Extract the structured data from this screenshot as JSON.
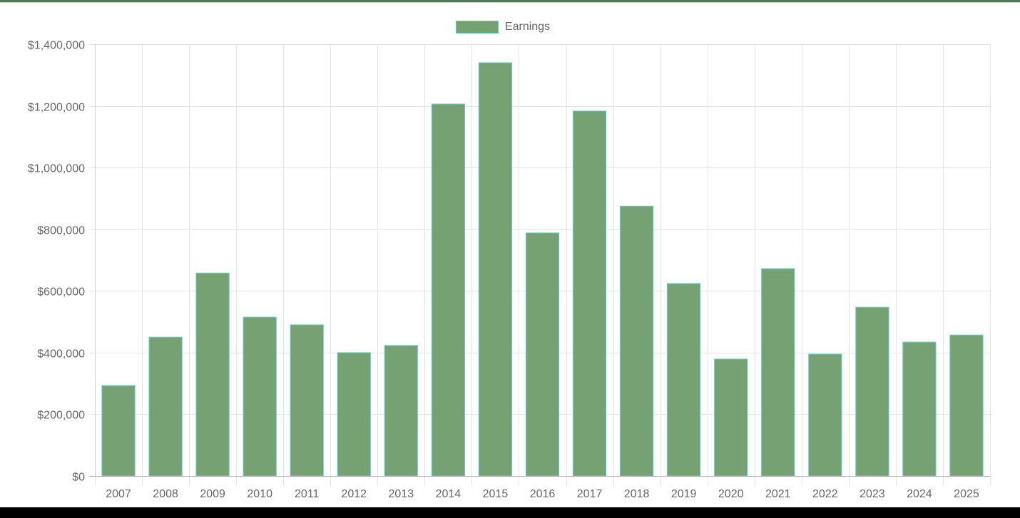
{
  "chart_data": {
    "type": "bar",
    "title": "",
    "xlabel": "",
    "ylabel": "",
    "ylim": [
      0,
      1400000
    ],
    "yticks": [
      0,
      200000,
      400000,
      600000,
      800000,
      1000000,
      1200000,
      1400000
    ],
    "ytick_labels": [
      "$0",
      "$200,000",
      "$400,000",
      "$600,000",
      "$800,000",
      "$1,000,000",
      "$1,200,000",
      "$1,400,000"
    ],
    "grid": true,
    "legend_position": "top",
    "categories": [
      "2007",
      "2008",
      "2009",
      "2010",
      "2011",
      "2012",
      "2013",
      "2014",
      "2015",
      "2016",
      "2017",
      "2018",
      "2019",
      "2020",
      "2021",
      "2022",
      "2023",
      "2024",
      "2025"
    ],
    "series": [
      {
        "name": "Earnings",
        "color": "#76a273",
        "border_color": "#5ecfc7",
        "values": [
          293000,
          450000,
          658000,
          515000,
          490000,
          400000,
          423000,
          1206000,
          1340000,
          788000,
          1183000,
          875000,
          624000,
          379000,
          672000,
          395000,
          547000,
          434000,
          457000
        ]
      }
    ]
  },
  "legend": {
    "label": "Earnings",
    "swatch_color": "#76a273",
    "swatch_border": "#5ecfc7"
  },
  "colors": {
    "bar_fill": "#76a273",
    "bar_border": "#5ecfc7",
    "grid": "#e5e5e5",
    "axis": "#b0b0b0",
    "text": "#666666"
  }
}
